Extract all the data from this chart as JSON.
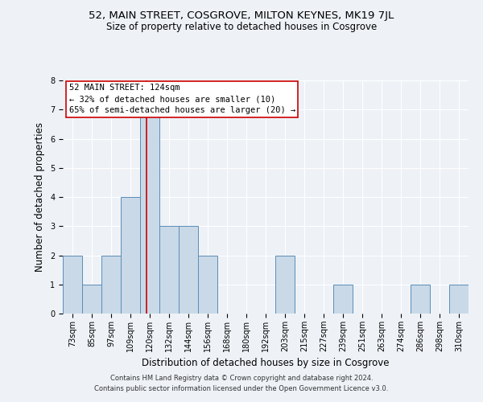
{
  "title": "52, MAIN STREET, COSGROVE, MILTON KEYNES, MK19 7JL",
  "subtitle": "Size of property relative to detached houses in Cosgrove",
  "xlabel": "Distribution of detached houses by size in Cosgrove",
  "ylabel": "Number of detached properties",
  "bin_labels": [
    "73sqm",
    "85sqm",
    "97sqm",
    "109sqm",
    "120sqm",
    "132sqm",
    "144sqm",
    "156sqm",
    "168sqm",
    "180sqm",
    "192sqm",
    "203sqm",
    "215sqm",
    "227sqm",
    "239sqm",
    "251sqm",
    "263sqm",
    "274sqm",
    "286sqm",
    "298sqm",
    "310sqm"
  ],
  "bar_heights": [
    2,
    1,
    2,
    4,
    7,
    3,
    3,
    2,
    0,
    0,
    0,
    2,
    0,
    0,
    1,
    0,
    0,
    0,
    1,
    0,
    1
  ],
  "bar_color": "#c9d9e8",
  "bar_edge_color": "#5b8db8",
  "marker_bin_index": 4,
  "marker_color": "#cc0000",
  "annotation_title": "52 MAIN STREET: 124sqm",
  "annotation_line1": "← 32% of detached houses are smaller (10)",
  "annotation_line2": "65% of semi-detached houses are larger (20) →",
  "annotation_box_color": "#ffffff",
  "annotation_box_edge": "#cc0000",
  "ylim": [
    0,
    8
  ],
  "yticks": [
    0,
    1,
    2,
    3,
    4,
    5,
    6,
    7,
    8
  ],
  "footer_line1": "Contains HM Land Registry data © Crown copyright and database right 2024.",
  "footer_line2": "Contains public sector information licensed under the Open Government Licence v3.0.",
  "background_color": "#eef2f7",
  "plot_background": "#eef2f7",
  "grid_color": "#ffffff",
  "title_fontsize": 9.5,
  "subtitle_fontsize": 8.5,
  "axis_label_fontsize": 8.5,
  "tick_fontsize": 7,
  "annotation_fontsize": 7.5,
  "footer_fontsize": 6
}
